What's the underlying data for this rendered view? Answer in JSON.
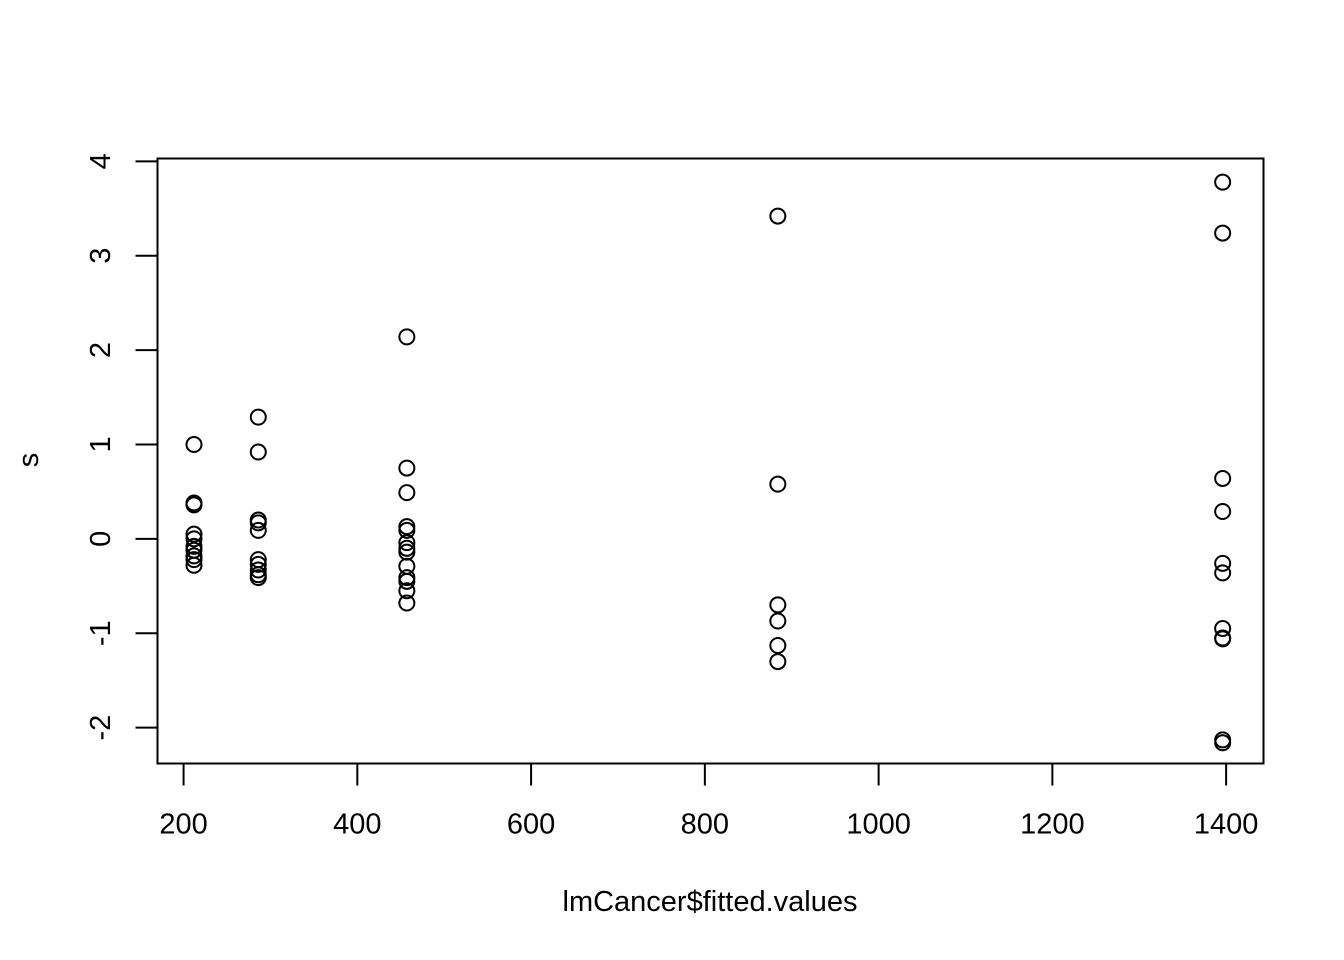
{
  "chart_data": {
    "type": "scatter",
    "title": "",
    "xlabel": "lmCancer$fitted.values",
    "ylabel": "s",
    "xlim": [
      170,
      1443
    ],
    "ylim": [
      -2.38,
      4.03
    ],
    "xticks": [
      200,
      400,
      600,
      800,
      1000,
      1200,
      1400
    ],
    "xtick_labels": [
      "200",
      "400",
      "600",
      "800",
      "1000",
      "1200",
      "1400"
    ],
    "yticks": [
      -2,
      -1,
      0,
      1,
      2,
      3,
      4
    ],
    "ytick_labels": [
      "-2",
      "-1",
      "0",
      "1",
      "2",
      "3",
      "4"
    ],
    "grid": false,
    "marker": "open-circle",
    "color": "#000000",
    "points": [
      {
        "x": 212,
        "y": 1.0
      },
      {
        "x": 212,
        "y": 0.38
      },
      {
        "x": 212,
        "y": 0.36
      },
      {
        "x": 212,
        "y": 0.05
      },
      {
        "x": 212,
        "y": 0.0
      },
      {
        "x": 212,
        "y": -0.08
      },
      {
        "x": 212,
        "y": -0.12
      },
      {
        "x": 212,
        "y": -0.18
      },
      {
        "x": 212,
        "y": -0.22
      },
      {
        "x": 212,
        "y": -0.28
      },
      {
        "x": 286,
        "y": 1.29
      },
      {
        "x": 286,
        "y": 0.92
      },
      {
        "x": 286,
        "y": 0.2
      },
      {
        "x": 286,
        "y": 0.17
      },
      {
        "x": 286,
        "y": 0.09
      },
      {
        "x": 286,
        "y": -0.22
      },
      {
        "x": 286,
        "y": -0.27
      },
      {
        "x": 286,
        "y": -0.33
      },
      {
        "x": 286,
        "y": -0.38
      },
      {
        "x": 286,
        "y": -0.41
      },
      {
        "x": 457,
        "y": 2.14
      },
      {
        "x": 457,
        "y": 0.75
      },
      {
        "x": 457,
        "y": 0.49
      },
      {
        "x": 457,
        "y": 0.13
      },
      {
        "x": 457,
        "y": 0.09
      },
      {
        "x": 457,
        "y": -0.04
      },
      {
        "x": 457,
        "y": -0.1
      },
      {
        "x": 457,
        "y": -0.14
      },
      {
        "x": 457,
        "y": -0.29
      },
      {
        "x": 457,
        "y": -0.41
      },
      {
        "x": 457,
        "y": -0.45
      },
      {
        "x": 457,
        "y": -0.55
      },
      {
        "x": 457,
        "y": -0.68
      },
      {
        "x": 884,
        "y": 3.42
      },
      {
        "x": 884,
        "y": 0.58
      },
      {
        "x": 884,
        "y": -0.7
      },
      {
        "x": 884,
        "y": -0.87
      },
      {
        "x": 884,
        "y": -1.13
      },
      {
        "x": 884,
        "y": -1.3
      },
      {
        "x": 1396,
        "y": 3.78
      },
      {
        "x": 1396,
        "y": 3.24
      },
      {
        "x": 1396,
        "y": 0.64
      },
      {
        "x": 1396,
        "y": 0.29
      },
      {
        "x": 1396,
        "y": -0.26
      },
      {
        "x": 1396,
        "y": -0.36
      },
      {
        "x": 1396,
        "y": -0.95
      },
      {
        "x": 1396,
        "y": -1.05
      },
      {
        "x": 1396,
        "y": -1.06
      },
      {
        "x": 1396,
        "y": -2.13
      },
      {
        "x": 1396,
        "y": -2.16
      }
    ]
  }
}
